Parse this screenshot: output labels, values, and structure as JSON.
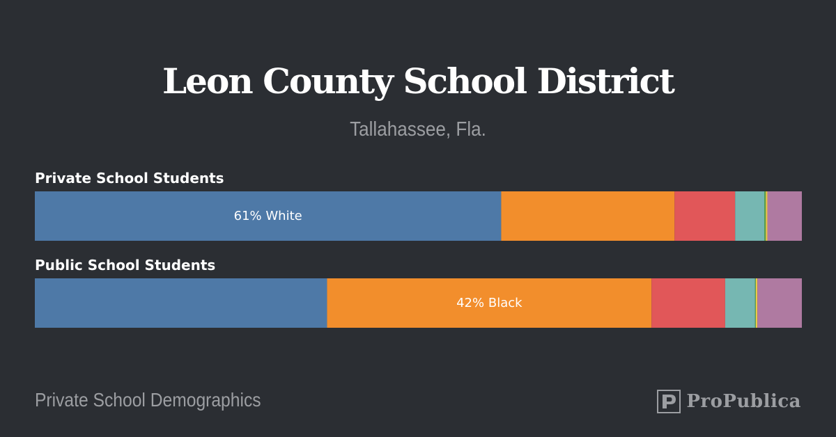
{
  "header": {
    "title": "Leon County School District",
    "subtitle": "Tallahassee, Fla."
  },
  "footer": {
    "caption": "Private School Demographics",
    "logo_text": "ProPublica"
  },
  "colors": {
    "background": "#2b2e33",
    "white": "#4e79a7",
    "black": "#f28e2c",
    "hispanic": "#e15759",
    "asian": "#76b7b2",
    "pacific_islander": "#59a14f",
    "native_american": "#edc949",
    "multiracial": "#af7aa1"
  },
  "chart_data": {
    "type": "bar",
    "stacked": true,
    "normalized": true,
    "orientation": "horizontal",
    "value_unit": "percent",
    "xlim": [
      0,
      100
    ],
    "grid": false,
    "legend": "none",
    "rows": [
      {
        "name": "Private School Students",
        "segments": [
          {
            "color": "white",
            "value": 60.8,
            "label": "61% White"
          },
          {
            "color": "black",
            "value": 22.6
          },
          {
            "color": "hispanic",
            "value": 7.9
          },
          {
            "color": "asian",
            "value": 3.8
          },
          {
            "color": "pacific_islander",
            "value": 0.2
          },
          {
            "color": "native_american",
            "value": 0.2
          },
          {
            "color": "multiracial",
            "value": 4.5
          }
        ]
      },
      {
        "name": "Public School Students",
        "segments": [
          {
            "color": "white",
            "value": 38.1
          },
          {
            "color": "black",
            "value": 42.3,
            "label": "42% Black"
          },
          {
            "color": "hispanic",
            "value": 9.6
          },
          {
            "color": "asian",
            "value": 3.9
          },
          {
            "color": "pacific_islander",
            "value": 0.1
          },
          {
            "color": "native_american",
            "value": 0.2
          },
          {
            "color": "multiracial",
            "value": 5.8
          }
        ]
      }
    ]
  }
}
